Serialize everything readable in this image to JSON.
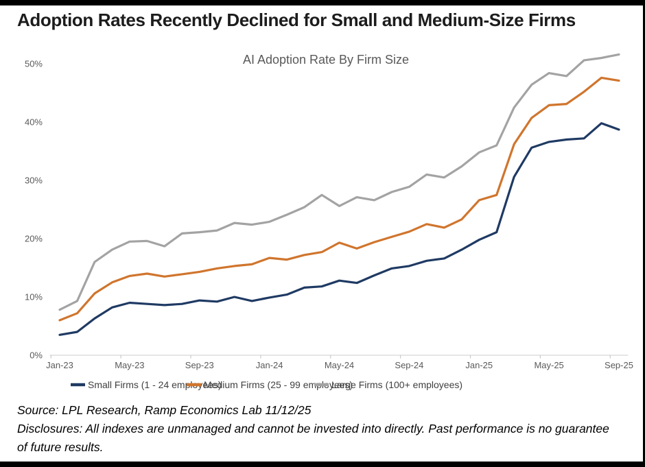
{
  "header": {
    "title": "Adoption Rates Recently Declined for Small and Medium-Size Firms"
  },
  "chart_data": {
    "type": "line",
    "title": "AI Adoption Rate By Firm Size",
    "grid": false,
    "legend_position": "bottom",
    "ylim": [
      0,
      52
    ],
    "y_tick_labels": [
      "0%",
      "10%",
      "20%",
      "30%",
      "40%",
      "50%"
    ],
    "x_tick_labels": [
      "Jan-23",
      "May-23",
      "Sep-23",
      "Jan-24",
      "May-24",
      "Sep-24",
      "Jan-25",
      "May-25",
      "Sep-25"
    ],
    "x": [
      "Jan-23",
      "Feb-23",
      "Mar-23",
      "Apr-23",
      "May-23",
      "Jun-23",
      "Jul-23",
      "Aug-23",
      "Sep-23",
      "Oct-23",
      "Nov-23",
      "Dec-23",
      "Jan-24",
      "Feb-24",
      "Mar-24",
      "Apr-24",
      "May-24",
      "Jun-24",
      "Jul-24",
      "Aug-24",
      "Sep-24",
      "Oct-24",
      "Nov-24",
      "Dec-24",
      "Jan-25",
      "Feb-25",
      "Mar-25",
      "Apr-25",
      "May-25",
      "Jun-25",
      "Jul-25",
      "Aug-25",
      "Sep-25"
    ],
    "y_unit": "percent",
    "series": [
      {
        "name": "Small Firms (1 - 24 employees)",
        "color": "#1f3a63",
        "values": [
          3.5,
          4.0,
          6.3,
          8.2,
          9.0,
          8.8,
          8.6,
          8.8,
          9.4,
          9.2,
          10.0,
          9.3,
          9.9,
          10.4,
          11.6,
          11.8,
          12.8,
          12.4,
          13.7,
          14.9,
          15.3,
          16.2,
          16.6,
          18.1,
          19.8,
          21.1,
          30.6,
          35.6,
          36.6,
          37.0,
          37.2,
          39.8,
          38.7
        ]
      },
      {
        "name": "Medium Firms (25 - 99 employees)",
        "color": "#d0752d",
        "values": [
          6.0,
          7.2,
          10.6,
          12.5,
          13.6,
          14.0,
          13.5,
          13.9,
          14.3,
          14.9,
          15.3,
          15.6,
          16.7,
          16.4,
          17.2,
          17.7,
          19.3,
          18.3,
          19.4,
          20.3,
          21.2,
          22.5,
          21.9,
          23.3,
          26.6,
          27.5,
          36.2,
          40.7,
          42.9,
          43.1,
          45.2,
          47.6,
          47.1
        ]
      },
      {
        "name": "Large Firms (100+ employees)",
        "color": "#a3a3a3",
        "values": [
          7.8,
          9.3,
          16.0,
          18.1,
          19.5,
          19.6,
          18.7,
          20.9,
          21.1,
          21.4,
          22.7,
          22.4,
          22.9,
          24.1,
          25.4,
          27.5,
          25.6,
          27.1,
          26.6,
          28.0,
          28.9,
          31.0,
          30.5,
          32.4,
          34.8,
          36.0,
          42.5,
          46.4,
          48.4,
          47.9,
          50.6,
          51.0,
          51.6
        ]
      }
    ]
  },
  "footer": {
    "source": "Source: LPL Research, Ramp Economics Lab 11/12/25",
    "disclosures": "Disclosures: All indexes are unmanaged and cannot be invested into directly. Past performance is no guarantee of future results."
  }
}
